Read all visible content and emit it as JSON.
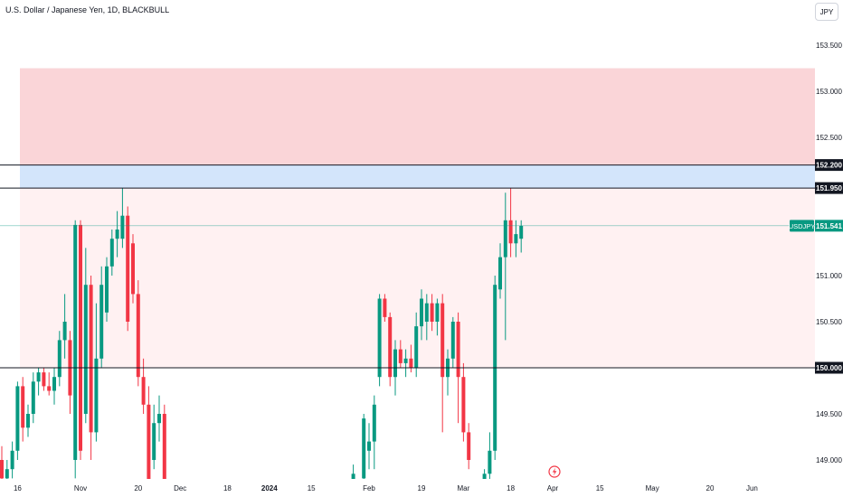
{
  "header": {
    "title": "U.S. Dollar / Japanese Yen, 1D, BLACKBULL",
    "currency": "JPY"
  },
  "colors": {
    "up": "#089981",
    "down": "#f23645",
    "zone_red": "#fad5d8",
    "zone_blue": "#d3e5fb",
    "zone_pink": "#fff1f2",
    "level_line": "#131722",
    "price_line": "#089981"
  },
  "chart_data": {
    "type": "candlestick",
    "title": "U.S. Dollar / Japanese Yen, 1D, BLACKBULL",
    "symbol": "USDJPY",
    "last_price": 151.541,
    "last_price_label": "151.541",
    "ylim": [
      148.8,
      153.75
    ],
    "y_ticks": [
      {
        "value": 149.0,
        "label": "149.000"
      },
      {
        "value": 149.5,
        "label": "149.500"
      },
      {
        "value": 150.5,
        "label": "150.500"
      },
      {
        "value": 151.0,
        "label": "151.000"
      },
      {
        "value": 152.5,
        "label": "152.500"
      },
      {
        "value": 153.0,
        "label": "153.000"
      },
      {
        "value": 153.5,
        "label": "153.500"
      }
    ],
    "x_ticks": [
      {
        "label": "16",
        "slot": 3,
        "bold": false
      },
      {
        "label": "Nov",
        "slot": 15,
        "bold": false
      },
      {
        "label": "20",
        "slot": 26,
        "bold": false
      },
      {
        "label": "Dec",
        "slot": 34,
        "bold": false
      },
      {
        "label": "18",
        "slot": 43,
        "bold": false
      },
      {
        "label": "2024",
        "slot": 51,
        "bold": true
      },
      {
        "label": "15",
        "slot": 59,
        "bold": false
      },
      {
        "label": "Feb",
        "slot": 70,
        "bold": false
      },
      {
        "label": "19",
        "slot": 80,
        "bold": false
      },
      {
        "label": "Mar",
        "slot": 88,
        "bold": false
      },
      {
        "label": "18",
        "slot": 97,
        "bold": false
      },
      {
        "label": "Apr",
        "slot": 105,
        "bold": false
      },
      {
        "label": "15",
        "slot": 114,
        "bold": false
      },
      {
        "label": "May",
        "slot": 124,
        "bold": false
      },
      {
        "label": "20",
        "slot": 135,
        "bold": false
      },
      {
        "label": "Jun",
        "slot": 143,
        "bold": false
      }
    ],
    "levels": [
      {
        "value": 152.2,
        "label": "152.200"
      },
      {
        "value": 151.95,
        "label": "151.950"
      },
      {
        "value": 150.0,
        "label": "150.000"
      }
    ],
    "zones": [
      {
        "from": 152.2,
        "to": 153.25,
        "color": "#fad5d8"
      },
      {
        "from": 151.95,
        "to": 152.2,
        "color": "#d3e5fb"
      },
      {
        "from": 150.0,
        "to": 151.95,
        "color": "#fff1f2"
      }
    ],
    "candles": [
      {
        "s": 0,
        "o": 149.0,
        "h": 149.15,
        "l": 148.75,
        "c": 148.8
      },
      {
        "s": 1,
        "o": 148.8,
        "h": 149.0,
        "l": 148.7,
        "c": 148.9
      },
      {
        "s": 2,
        "o": 148.9,
        "h": 149.2,
        "l": 148.8,
        "c": 149.1
      },
      {
        "s": 3,
        "o": 149.1,
        "h": 149.85,
        "l": 149.0,
        "c": 149.8
      },
      {
        "s": 4,
        "o": 149.8,
        "h": 149.9,
        "l": 149.2,
        "c": 149.35
      },
      {
        "s": 5,
        "o": 149.35,
        "h": 149.6,
        "l": 149.25,
        "c": 149.5
      },
      {
        "s": 6,
        "o": 149.5,
        "h": 149.95,
        "l": 149.4,
        "c": 149.85
      },
      {
        "s": 7,
        "o": 149.85,
        "h": 150.0,
        "l": 149.7,
        "c": 149.95
      },
      {
        "s": 8,
        "o": 149.95,
        "h": 150.0,
        "l": 149.75,
        "c": 149.8
      },
      {
        "s": 9,
        "o": 149.8,
        "h": 149.95,
        "l": 149.7,
        "c": 149.75
      },
      {
        "s": 10,
        "o": 149.75,
        "h": 150.0,
        "l": 149.6,
        "c": 149.9
      },
      {
        "s": 11,
        "o": 149.9,
        "h": 150.4,
        "l": 149.8,
        "c": 150.3
      },
      {
        "s": 12,
        "o": 150.3,
        "h": 150.8,
        "l": 150.1,
        "c": 150.5
      },
      {
        "s": 13,
        "o": 150.3,
        "h": 150.4,
        "l": 149.5,
        "c": 149.7
      },
      {
        "s": 14,
        "o": 149.0,
        "h": 151.6,
        "l": 148.8,
        "c": 151.55
      },
      {
        "s": 15,
        "o": 151.55,
        "h": 151.6,
        "l": 149.0,
        "c": 149.1
      },
      {
        "s": 16,
        "o": 149.5,
        "h": 151.3,
        "l": 149.4,
        "c": 150.9
      },
      {
        "s": 17,
        "o": 150.9,
        "h": 151.0,
        "l": 149.0,
        "c": 149.3
      },
      {
        "s": 18,
        "o": 149.3,
        "h": 150.7,
        "l": 149.2,
        "c": 150.1
      },
      {
        "s": 19,
        "o": 150.1,
        "h": 151.1,
        "l": 150.0,
        "c": 150.9
      },
      {
        "s": 20,
        "o": 150.6,
        "h": 151.2,
        "l": 150.5,
        "c": 151.1
      },
      {
        "s": 21,
        "o": 151.1,
        "h": 151.5,
        "l": 151.0,
        "c": 151.4
      },
      {
        "s": 22,
        "o": 151.4,
        "h": 151.7,
        "l": 151.2,
        "c": 151.5
      },
      {
        "s": 23,
        "o": 151.4,
        "h": 151.95,
        "l": 151.3,
        "c": 151.65
      },
      {
        "s": 24,
        "o": 151.65,
        "h": 151.75,
        "l": 150.4,
        "c": 150.5
      },
      {
        "s": 25,
        "o": 151.35,
        "h": 151.45,
        "l": 150.7,
        "c": 150.8
      },
      {
        "s": 26,
        "o": 150.8,
        "h": 150.95,
        "l": 149.8,
        "c": 149.9
      },
      {
        "s": 27,
        "o": 149.9,
        "h": 150.1,
        "l": 149.5,
        "c": 149.6
      },
      {
        "s": 28,
        "o": 149.6,
        "h": 149.8,
        "l": 148.4,
        "c": 148.5
      },
      {
        "s": 29,
        "o": 149.0,
        "h": 149.6,
        "l": 148.9,
        "c": 149.4
      },
      {
        "s": 30,
        "o": 149.4,
        "h": 149.7,
        "l": 149.2,
        "c": 149.5
      },
      {
        "s": 31,
        "o": 149.5,
        "h": 149.6,
        "l": 148.4,
        "c": 148.5
      },
      {
        "s": 67,
        "o": 148.5,
        "h": 148.95,
        "l": 148.4,
        "c": 148.85
      },
      {
        "s": 69,
        "o": 148.8,
        "h": 149.5,
        "l": 148.7,
        "c": 149.45
      },
      {
        "s": 70,
        "o": 149.1,
        "h": 149.4,
        "l": 148.9,
        "c": 149.2
      },
      {
        "s": 71,
        "o": 149.2,
        "h": 149.7,
        "l": 148.9,
        "c": 149.6
      },
      {
        "s": 72,
        "o": 149.9,
        "h": 150.8,
        "l": 149.8,
        "c": 150.75
      },
      {
        "s": 73,
        "o": 150.75,
        "h": 150.8,
        "l": 150.5,
        "c": 150.55
      },
      {
        "s": 74,
        "o": 150.55,
        "h": 150.6,
        "l": 149.8,
        "c": 149.9
      },
      {
        "s": 75,
        "o": 149.9,
        "h": 150.3,
        "l": 149.7,
        "c": 150.2
      },
      {
        "s": 76,
        "o": 150.2,
        "h": 150.3,
        "l": 150.0,
        "c": 150.05
      },
      {
        "s": 77,
        "o": 150.05,
        "h": 150.2,
        "l": 149.9,
        "c": 150.1
      },
      {
        "s": 78,
        "o": 150.1,
        "h": 150.25,
        "l": 149.95,
        "c": 150.0
      },
      {
        "s": 79,
        "o": 150.0,
        "h": 150.6,
        "l": 149.9,
        "c": 150.45
      },
      {
        "s": 80,
        "o": 150.45,
        "h": 150.85,
        "l": 150.3,
        "c": 150.75
      },
      {
        "s": 81,
        "o": 150.5,
        "h": 150.8,
        "l": 150.3,
        "c": 150.7
      },
      {
        "s": 82,
        "o": 150.7,
        "h": 150.8,
        "l": 150.4,
        "c": 150.5
      },
      {
        "s": 83,
        "o": 150.5,
        "h": 150.75,
        "l": 150.35,
        "c": 150.7
      },
      {
        "s": 84,
        "o": 150.7,
        "h": 150.8,
        "l": 149.3,
        "c": 149.9
      },
      {
        "s": 85,
        "o": 149.9,
        "h": 150.2,
        "l": 149.7,
        "c": 150.1
      },
      {
        "s": 86,
        "o": 150.1,
        "h": 150.55,
        "l": 150.0,
        "c": 150.5
      },
      {
        "s": 87,
        "o": 150.5,
        "h": 150.6,
        "l": 149.4,
        "c": 149.9
      },
      {
        "s": 88,
        "o": 149.9,
        "h": 150.05,
        "l": 149.2,
        "c": 149.3
      },
      {
        "s": 89,
        "o": 149.3,
        "h": 149.4,
        "l": 148.9,
        "c": 149.0
      },
      {
        "s": 92,
        "o": 148.7,
        "h": 148.9,
        "l": 148.6,
        "c": 148.85
      },
      {
        "s": 93,
        "o": 148.85,
        "h": 149.3,
        "l": 148.7,
        "c": 149.1
      },
      {
        "s": 94,
        "o": 149.1,
        "h": 151.0,
        "l": 149.0,
        "c": 150.9
      },
      {
        "s": 95,
        "o": 150.85,
        "h": 151.35,
        "l": 150.75,
        "c": 151.2
      },
      {
        "s": 96,
        "o": 151.2,
        "h": 151.9,
        "l": 150.3,
        "c": 151.6
      },
      {
        "s": 97,
        "o": 151.6,
        "h": 151.95,
        "l": 151.2,
        "c": 151.35
      },
      {
        "s": 98,
        "o": 151.35,
        "h": 151.6,
        "l": 151.2,
        "c": 151.45
      },
      {
        "s": 99,
        "o": 151.4,
        "h": 151.6,
        "l": 151.25,
        "c": 151.54
      }
    ]
  }
}
